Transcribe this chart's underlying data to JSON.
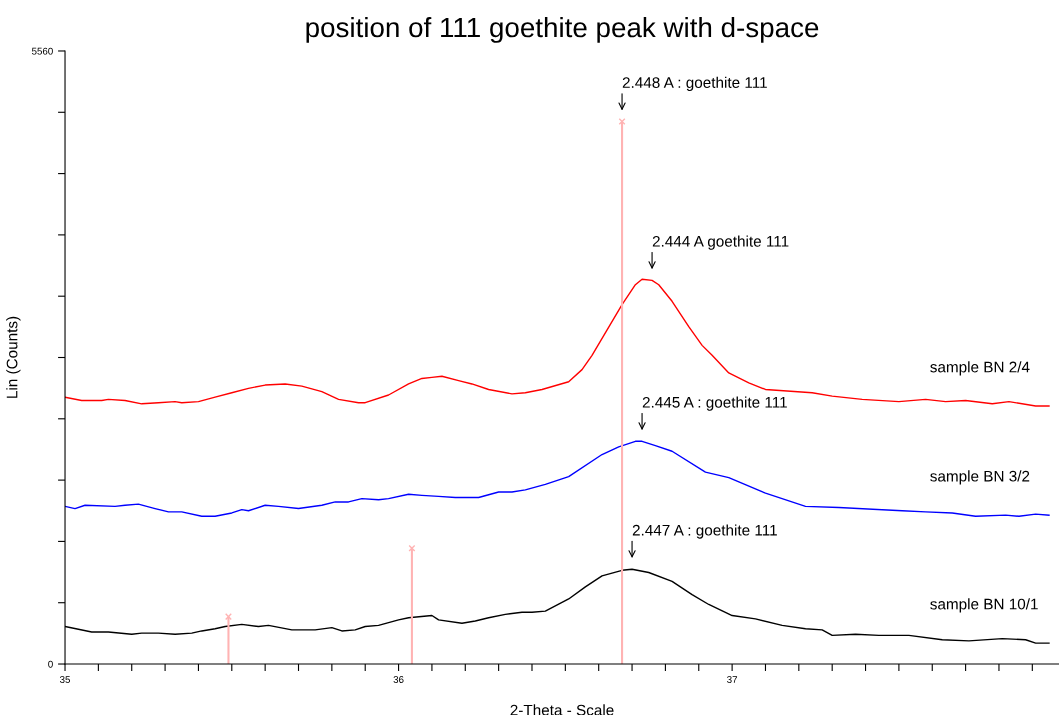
{
  "chart_data": {
    "type": "line",
    "title": "position of 111 goethite peak with d-space",
    "xlabel": "2-Theta - Scale",
    "ylabel": "Lin (Counts)",
    "xlim": [
      35,
      37.98
    ],
    "xticks": [
      35,
      {
        "value": 35.1,
        "label": null
      },
      {
        "value": 35.2,
        "label": null
      },
      {
        "value": 35.3,
        "label": null
      },
      {
        "value": 35.4,
        "label": null
      },
      {
        "value": 35.5,
        "label": null
      },
      {
        "value": 35.6,
        "label": null
      },
      {
        "value": 35.7,
        "label": null
      },
      {
        "value": 35.8,
        "label": null
      },
      {
        "value": 35.9,
        "label": null
      },
      36,
      {
        "value": 36.1,
        "label": null
      },
      {
        "value": 36.2,
        "label": null
      },
      {
        "value": 36.3,
        "label": null
      },
      {
        "value": 36.4,
        "label": null
      },
      {
        "value": 36.5,
        "label": null
      },
      {
        "value": 36.6,
        "label": null
      },
      {
        "value": 36.7,
        "label": null
      },
      {
        "value": 36.8,
        "label": null
      },
      {
        "value": 36.9,
        "label": null
      },
      37,
      {
        "value": 37.1,
        "label": null
      },
      {
        "value": 37.2,
        "label": null
      },
      {
        "value": 37.3,
        "label": null
      },
      {
        "value": 37.4,
        "label": null
      },
      {
        "value": 37.5,
        "label": null
      },
      {
        "value": 37.6,
        "label": null
      },
      {
        "value": 37.7,
        "label": null
      },
      {
        "value": 37.8,
        "label": null
      },
      {
        "value": 37.9,
        "label": null
      }
    ],
    "ylim": [
      0,
      5560
    ],
    "yticks": [
      0,
      {
        "value": 556,
        "label": null
      },
      {
        "value": 1112,
        "label": null
      },
      {
        "value": 1668,
        "label": null
      },
      {
        "value": 2224,
        "label": null
      },
      {
        "value": 2780,
        "label": null
      },
      {
        "value": 3336,
        "label": null
      },
      {
        "value": 3892,
        "label": null
      },
      {
        "value": 4448,
        "label": null
      },
      {
        "value": 5004,
        "label": null
      },
      5560
    ],
    "grid": false,
    "legend": false,
    "marker": "none",
    "line_style": "solid",
    "series": [
      {
        "name": "sample BN 2/4",
        "color": "#ff0000",
        "x": [
          35.0,
          35.05,
          35.11,
          35.13,
          35.18,
          35.23,
          35.28,
          35.33,
          35.35,
          35.4,
          35.45,
          35.5,
          35.55,
          35.6,
          35.66,
          35.71,
          35.77,
          35.82,
          35.88,
          35.9,
          35.97,
          36.03,
          36.07,
          36.1,
          36.13,
          36.18,
          36.22,
          36.27,
          36.34,
          36.38,
          36.43,
          36.51,
          36.55,
          36.58,
          36.67,
          36.71,
          36.73,
          36.76,
          36.78,
          36.82,
          36.87,
          36.91,
          36.94,
          36.99,
          37.05,
          37.1,
          37.24,
          37.3,
          37.39,
          37.5,
          37.58,
          37.64,
          37.7,
          37.78,
          37.83,
          37.91,
          37.95
        ],
        "values": [
          2420,
          2390,
          2390,
          2400,
          2390,
          2360,
          2370,
          2380,
          2370,
          2380,
          2420,
          2460,
          2500,
          2530,
          2540,
          2520,
          2470,
          2400,
          2370,
          2370,
          2440,
          2540,
          2590,
          2600,
          2610,
          2570,
          2540,
          2490,
          2450,
          2460,
          2490,
          2560,
          2670,
          2800,
          3260,
          3440,
          3490,
          3480,
          3440,
          3290,
          3060,
          2890,
          2800,
          2640,
          2550,
          2490,
          2460,
          2430,
          2400,
          2380,
          2400,
          2380,
          2390,
          2360,
          2380,
          2340,
          2340
        ]
      },
      {
        "name": "sample BN 3/2",
        "color": "#0000ff",
        "x": [
          35.0,
          35.03,
          35.06,
          35.15,
          35.18,
          35.22,
          35.27,
          35.31,
          35.35,
          35.41,
          35.45,
          35.5,
          35.53,
          35.55,
          35.6,
          35.64,
          35.7,
          35.77,
          35.81,
          35.85,
          35.89,
          35.94,
          35.97,
          36.03,
          36.07,
          36.12,
          36.17,
          36.24,
          36.3,
          36.34,
          36.38,
          36.44,
          36.51,
          36.61,
          36.66,
          36.71,
          36.73,
          36.77,
          36.82,
          36.92,
          36.99,
          37.1,
          37.22,
          37.32,
          37.51,
          37.58,
          37.66,
          37.73,
          37.82,
          37.86,
          37.91,
          37.95
        ],
        "values": [
          1430,
          1410,
          1440,
          1430,
          1440,
          1450,
          1410,
          1380,
          1380,
          1340,
          1340,
          1370,
          1400,
          1390,
          1440,
          1430,
          1410,
          1440,
          1470,
          1470,
          1500,
          1490,
          1500,
          1540,
          1530,
          1520,
          1510,
          1510,
          1560,
          1560,
          1580,
          1630,
          1700,
          1900,
          1970,
          2020,
          2020,
          1980,
          1930,
          1740,
          1690,
          1550,
          1430,
          1420,
          1390,
          1380,
          1370,
          1340,
          1350,
          1340,
          1360,
          1350
        ]
      },
      {
        "name": "sample BN 10/1",
        "color": "#000000",
        "x": [
          35.0,
          35.08,
          35.13,
          35.2,
          35.23,
          35.28,
          35.33,
          35.38,
          35.41,
          35.45,
          35.48,
          35.53,
          35.58,
          35.61,
          35.68,
          35.75,
          35.8,
          35.83,
          35.87,
          35.9,
          35.94,
          36.0,
          36.03,
          36.1,
          36.12,
          36.19,
          36.23,
          36.27,
          36.32,
          36.37,
          36.4,
          36.44,
          36.51,
          36.56,
          36.61,
          36.67,
          36.7,
          36.75,
          36.82,
          36.88,
          36.93,
          37.0,
          37.07,
          37.15,
          37.22,
          37.27,
          37.3,
          37.37,
          37.44,
          37.53,
          37.63,
          37.71,
          37.81,
          37.88,
          37.91,
          37.95
        ],
        "values": [
          340,
          290,
          290,
          270,
          280,
          280,
          270,
          280,
          300,
          320,
          340,
          360,
          340,
          350,
          310,
          310,
          330,
          300,
          310,
          340,
          350,
          400,
          420,
          440,
          400,
          370,
          390,
          420,
          450,
          470,
          470,
          480,
          590,
          700,
          800,
          850,
          860,
          830,
          750,
          630,
          540,
          440,
          410,
          350,
          320,
          310,
          260,
          270,
          260,
          260,
          220,
          210,
          230,
          220,
          190,
          190
        ]
      },
      {
        "type": "lollipop",
        "color": "#ffb3b3",
        "marker": "cross",
        "x": [
          35.49,
          36.04,
          36.67
        ],
        "values": [
          430,
          1050,
          4920
        ]
      }
    ],
    "annotations": [
      {
        "text": "2.448 A : goethite 111",
        "x": 36.67,
        "y": 4920
      },
      {
        "text": "2.444 A goethite 111",
        "x": 36.76,
        "y": 3480
      },
      {
        "text": "2.445 A : goethite 111",
        "x": 36.73,
        "y": 2020
      },
      {
        "text": "2.447 A : goethite 111",
        "x": 36.7,
        "y": 860
      }
    ]
  }
}
